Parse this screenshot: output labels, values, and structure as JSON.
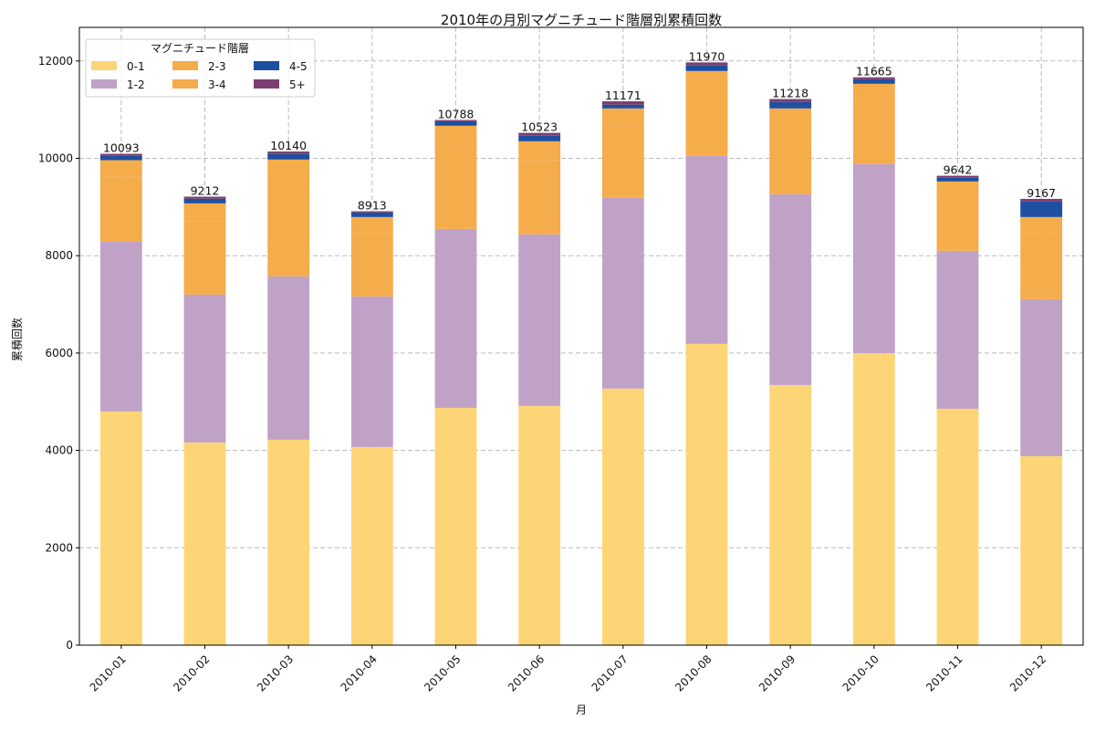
{
  "chart_data": {
    "type": "bar",
    "stacked": true,
    "title": "2010年の月別マグニチュード階層別累積回数",
    "xlabel": "月",
    "ylabel": "累積回数",
    "ylim": [
      0,
      12690
    ],
    "yticks": [
      0,
      2000,
      4000,
      6000,
      8000,
      10000,
      12000
    ],
    "grid": true,
    "legend": {
      "title": "マグニチュード階層",
      "placement": "top-left",
      "columns": 3
    },
    "categories": [
      "2010-01",
      "2010-02",
      "2010-03",
      "2010-04",
      "2010-05",
      "2010-06",
      "2010-07",
      "2010-08",
      "2010-09",
      "2010-10",
      "2010-11",
      "2010-12"
    ],
    "series": [
      {
        "name": "0-1",
        "color": "#FDD577",
        "values": [
          4800,
          4163,
          4219,
          4069,
          4875,
          4913,
          5269,
          6188,
          5344,
          6000,
          4856,
          3881
        ]
      },
      {
        "name": "1-2",
        "color": "#C0A2C7",
        "values": [
          3488,
          3037,
          3356,
          3094,
          3675,
          3525,
          3919,
          3862,
          3919,
          3881,
          3244,
          3225
        ]
      },
      {
        "name": "2-3",
        "color": "#F5AC4A",
        "values": [
          1340,
          1500,
          1920,
          1305,
          1695,
          1530,
          1470,
          1395,
          1410,
          1320,
          1140,
          1350
        ]
      },
      {
        "name": "3-4",
        "color": "#F5AC4A",
        "values": [
          334,
          375,
          480,
          326,
          424,
          382,
          367,
          349,
          352,
          330,
          285,
          338
        ]
      },
      {
        "name": "4-5",
        "color": "#1F4FA0",
        "values": [
          98,
          94,
          113,
          94,
          94,
          113,
          75,
          112,
          131,
          94,
          75,
          319
        ]
      },
      {
        "name": "5+",
        "color": "#7A3F6F",
        "values": [
          33,
          43,
          52,
          25,
          25,
          60,
          71,
          64,
          62,
          40,
          42,
          54
        ]
      }
    ],
    "totals": [
      10093,
      9212,
      10140,
      8913,
      10788,
      10523,
      11171,
      11970,
      11218,
      11665,
      9642,
      9167
    ]
  }
}
